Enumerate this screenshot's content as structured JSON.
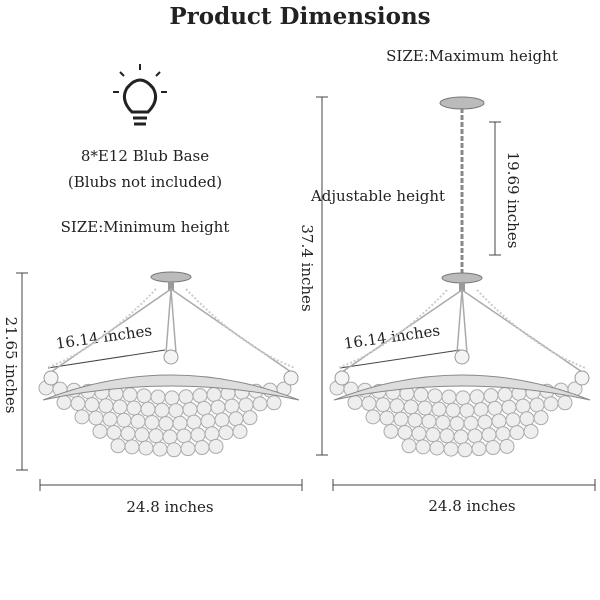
{
  "header": {
    "title": "Product Dimensions"
  },
  "left": {
    "bulb_base": "8*E12 Blub Base",
    "bulb_note": "(Blubs not included)",
    "size_label": "SIZE:Minimum height",
    "height": "21.65 inches",
    "diagonal": "16.14 inches",
    "width": "24.8 inches"
  },
  "right": {
    "size_label": "SIZE:Maximum height",
    "adjustable_label": "Adjustable height",
    "total_height": "37.4 inches",
    "chain_height": "19.69 inches",
    "diagonal": "16.14 inches",
    "width": "24.8 inches"
  }
}
